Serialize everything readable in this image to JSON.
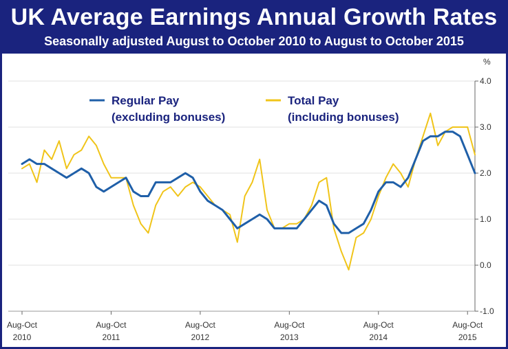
{
  "header": {
    "title": "UK Average Earnings Annual Growth Rates",
    "subtitle": "Seasonally adjusted August to October 2010 to August to October 2015"
  },
  "chart_data": {
    "type": "line",
    "ylabel": "%",
    "ylim": [
      -1.0,
      4.0
    ],
    "y_ticks": [
      "4.0",
      "3.0",
      "2.0",
      "1.0",
      "0.0",
      "-1.0"
    ],
    "y_tick_values": [
      4,
      3,
      2,
      1,
      0,
      -1
    ],
    "x_ticks": [
      {
        "line1": "Aug-Oct",
        "line2": "2010",
        "index": 0
      },
      {
        "line1": "Aug-Oct",
        "line2": "2011",
        "index": 12
      },
      {
        "line1": "Aug-Oct",
        "line2": "2012",
        "index": 24
      },
      {
        "line1": "Aug-Oct",
        "line2": "2013",
        "index": 36
      },
      {
        "line1": "Aug-Oct",
        "line2": "2014",
        "index": 48
      },
      {
        "line1": "Aug-Oct",
        "line2": "2015",
        "index": 60
      }
    ],
    "grid": true,
    "legend_position": "top-left",
    "series": [
      {
        "name": "Regular Pay",
        "name_line2": "(excluding bonuses)",
        "color": "#1f5fa8",
        "values": [
          2.2,
          2.3,
          2.2,
          2.2,
          2.1,
          2.0,
          1.9,
          2.0,
          2.1,
          2.0,
          1.7,
          1.6,
          1.7,
          1.8,
          1.9,
          1.6,
          1.5,
          1.5,
          1.8,
          1.8,
          1.8,
          1.9,
          2.0,
          1.9,
          1.6,
          1.4,
          1.3,
          1.2,
          1.0,
          0.8,
          0.9,
          1.0,
          1.1,
          1.0,
          0.8,
          0.8,
          0.8,
          0.8,
          1.0,
          1.2,
          1.4,
          1.3,
          0.9,
          0.7,
          0.7,
          0.8,
          0.9,
          1.2,
          1.6,
          1.8,
          1.8,
          1.7,
          1.9,
          2.3,
          2.7,
          2.8,
          2.8,
          2.9,
          2.9,
          2.8,
          2.4,
          2.0
        ]
      },
      {
        "name": "Total Pay",
        "name_line2": "(including bonuses)",
        "color": "#f0c419",
        "values": [
          2.1,
          2.2,
          1.8,
          2.5,
          2.3,
          2.7,
          2.1,
          2.4,
          2.5,
          2.8,
          2.6,
          2.2,
          1.9,
          1.9,
          1.9,
          1.3,
          0.9,
          0.7,
          1.3,
          1.6,
          1.7,
          1.5,
          1.7,
          1.8,
          1.7,
          1.5,
          1.3,
          1.2,
          1.1,
          0.5,
          1.5,
          1.8,
          2.3,
          1.2,
          0.8,
          0.8,
          0.9,
          0.9,
          1.0,
          1.3,
          1.8,
          1.9,
          0.8,
          0.3,
          -0.1,
          0.6,
          0.7,
          1.0,
          1.5,
          1.9,
          2.2,
          2.0,
          1.7,
          2.3,
          2.8,
          3.3,
          2.6,
          2.9,
          3.0,
          3.0,
          3.0,
          2.4
        ]
      }
    ]
  }
}
